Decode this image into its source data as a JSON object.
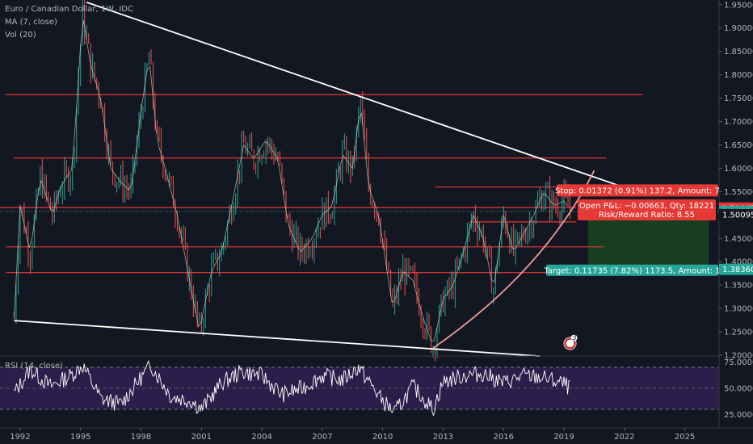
{
  "legend": {
    "symbol": "Euro / Canadian Dollar, 1W, IDC",
    "ma": "MA (7, close)",
    "vol": "Vol (20)",
    "rsi": "RSI (14, close)"
  },
  "colors": {
    "background": "#131722",
    "candle_up": "#26a69a",
    "candle_down": "#ef5350",
    "ma_line": "#c8e6c9",
    "trend_line": "#ffffff",
    "hline": "#e53935",
    "curve": "#ef9a9a",
    "stop_zone": "#b71c1c",
    "target_zone": "#1b5e20",
    "rsi_fill": "#2a1f4a",
    "rsi_line": "#ffffff",
    "axis_text": "#b2b5be"
  },
  "chart_data": [
    {
      "type": "line",
      "title": "Euro / Canadian Dollar, 1W, IDC",
      "x_ticks": [
        "1992",
        "1995",
        "1998",
        "2001",
        "2004",
        "2007",
        "2010",
        "2013",
        "2016",
        "2019",
        "2022",
        "2025"
      ],
      "y_ticks": [
        "1.95000",
        "1.90000",
        "1.85000",
        "1.80000",
        "1.75000",
        "1.70000",
        "1.65000",
        "1.60000",
        "1.55000",
        "1.50000",
        "1.45000",
        "1.40000",
        "1.35000",
        "1.30000",
        "1.25000",
        "1.20000"
      ],
      "ylim": [
        1.2,
        1.96
      ],
      "series": [
        {
          "name": "EURCAD",
          "x": [
            1991.7,
            1992.0,
            1992.5,
            1993.0,
            1993.6,
            1994.0,
            1994.6,
            1995.1,
            1995.5,
            1996.0,
            1996.5,
            1997.0,
            1997.5,
            1998.0,
            1998.4,
            1998.8,
            1999.2,
            1999.8,
            2000.5,
            2000.9,
            2001.5,
            2002.0,
            2002.5,
            2003.1,
            2003.6,
            2004.2,
            2004.8,
            2005.3,
            2005.9,
            2006.5,
            2007.0,
            2007.5,
            2008.0,
            2008.5,
            2008.9,
            2009.3,
            2009.8,
            2010.5,
            2011.0,
            2011.5,
            2012.0,
            2012.5,
            2013.0,
            2013.5,
            2014.0,
            2014.5,
            2015.0,
            2015.5,
            2016.0,
            2016.5,
            2017.0,
            2017.5,
            2018.0,
            2018.5,
            2019.0,
            2019.3
          ],
          "values": [
            1.28,
            1.52,
            1.42,
            1.58,
            1.5,
            1.56,
            1.6,
            1.93,
            1.82,
            1.75,
            1.6,
            1.57,
            1.55,
            1.72,
            1.84,
            1.66,
            1.6,
            1.5,
            1.34,
            1.25,
            1.38,
            1.42,
            1.52,
            1.65,
            1.62,
            1.66,
            1.62,
            1.48,
            1.42,
            1.45,
            1.5,
            1.52,
            1.63,
            1.6,
            1.74,
            1.56,
            1.5,
            1.3,
            1.38,
            1.36,
            1.28,
            1.22,
            1.32,
            1.35,
            1.42,
            1.5,
            1.45,
            1.34,
            1.5,
            1.42,
            1.46,
            1.5,
            1.55,
            1.52,
            1.53,
            1.51
          ]
        }
      ],
      "price_labels": {
        "stop": "1.51467",
        "current": "1.50758",
        "entry": "1.50095",
        "target": "1.38360"
      },
      "price_values": {
        "stop": 1.51467,
        "current": 1.50758,
        "entry": 1.50095,
        "target": 1.3836
      },
      "horizontal_levels": [
        1.7575,
        1.6219,
        1.5598,
        1.5161,
        1.4852,
        1.4318,
        1.3767
      ],
      "annotations": {
        "stop": "Stop: 0.01372 (0.91%) 137.2, Amount: 7",
        "open_pnl": "Open P&L: −0.00663, Qty: 18221",
        "risk_reward": "Risk/Reward Ratio: 8.55",
        "target": "Target: 0.11735 (7.82%) 1173.5, Amount: 1",
        "event_count": "3"
      }
    },
    {
      "type": "line",
      "title": "RSI (14, close)",
      "y_ticks": [
        "75.0000",
        "50.0000",
        "25.0000"
      ],
      "ylim": [
        20,
        80
      ],
      "bands": [
        30,
        70
      ],
      "x": [
        1991.7,
        1992.5,
        1993.5,
        1994.5,
        1995.1,
        1996.0,
        1997.0,
        1998.0,
        1998.5,
        1999.5,
        2000.5,
        2001.0,
        2002.0,
        2003.0,
        2004.0,
        2005.0,
        2006.0,
        2007.0,
        2008.0,
        2008.8,
        2010.0,
        2010.6,
        2011.5,
        2012.5,
        2013.0,
        2014.0,
        2015.0,
        2016.0,
        2017.0,
        2018.0,
        2019.0,
        2019.3
      ],
      "values": [
        45,
        68,
        52,
        62,
        72,
        40,
        35,
        60,
        72,
        42,
        38,
        30,
        55,
        66,
        62,
        44,
        50,
        62,
        58,
        70,
        38,
        27,
        52,
        30,
        56,
        62,
        64,
        55,
        62,
        60,
        54,
        50
      ]
    }
  ]
}
